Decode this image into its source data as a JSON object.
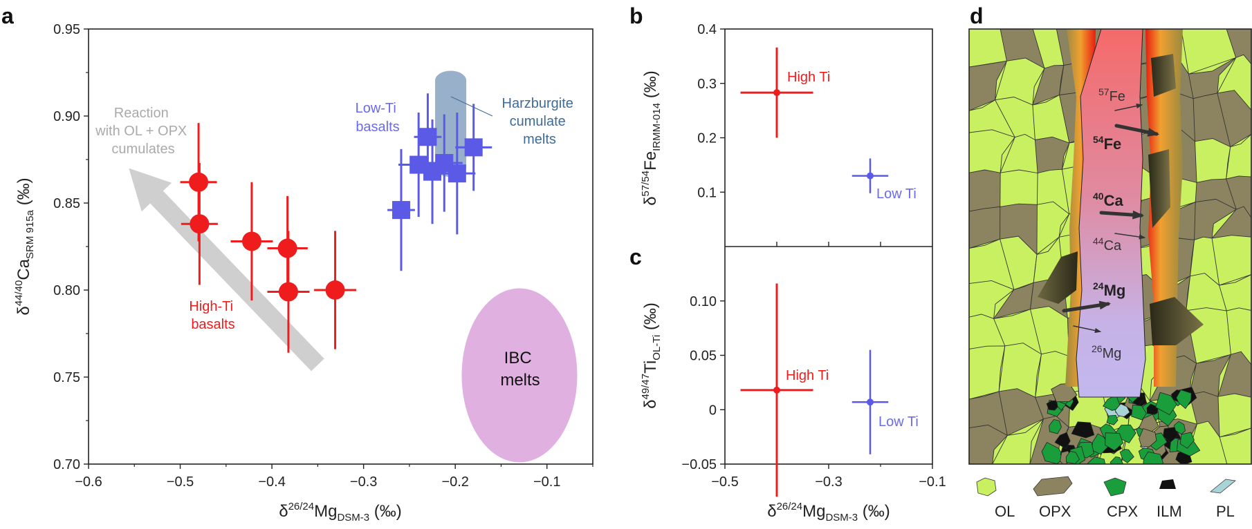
{
  "colors": {
    "high_ti": "#ee1c1c",
    "low_ti": "#5a5ae6",
    "low_ti_label": "#6a6af0",
    "harz_band": "#8ea7c4",
    "harz_label": "#3f6b99",
    "ibc": "#e0b0e0",
    "arrow": "#cfcfcf",
    "ol": "#c8f060",
    "opx": "#8c8460",
    "cpx": "#1a9e3c",
    "ilm": "#111111",
    "pl": "#a8d4d8"
  },
  "panel_labels": {
    "a": "a",
    "b": "b",
    "c": "c",
    "d": "d"
  },
  "chart_data": [
    {
      "id": "a",
      "type": "scatter",
      "xlabel": {
        "delta": "δ",
        "sup": "26/24",
        "base": "Mg",
        "sub": "DSM-3",
        "unit": " (‰)"
      },
      "ylabel": {
        "delta": "δ",
        "sup": "44/40",
        "base": "Ca",
        "sub": "SRM 915a",
        "unit": " (‰)"
      },
      "xlim": [
        -0.6,
        -0.05
      ],
      "ylim": [
        0.7,
        0.95
      ],
      "xticks": [
        -0.6,
        -0.5,
        -0.4,
        -0.3,
        -0.2,
        -0.1
      ],
      "xtick_labels": [
        "−0.6",
        "−0.5",
        "−0.4",
        "−0.3",
        "−0.2",
        "−0.1"
      ],
      "yticks": [
        0.7,
        0.75,
        0.8,
        0.85,
        0.9,
        0.95
      ],
      "ytick_labels": [
        "0.70",
        "0.75",
        "0.80",
        "0.85",
        "0.90",
        "0.95"
      ],
      "series": [
        {
          "name": "High-Ti basalts",
          "label_lines": [
            "High-Ti",
            "basalts"
          ],
          "marker": "circle",
          "points": [
            {
              "x": -0.48,
              "y": 0.862,
              "xerr": 0.02,
              "yerr": 0.034
            },
            {
              "x": -0.479,
              "y": 0.838,
              "xerr": 0.02,
              "yerr": 0.035
            },
            {
              "x": -0.422,
              "y": 0.828,
              "xerr": 0.023,
              "yerr": 0.034
            },
            {
              "x": -0.383,
              "y": 0.824,
              "xerr": 0.022,
              "yerr": 0.03
            },
            {
              "x": -0.382,
              "y": 0.799,
              "xerr": 0.023,
              "yerr": 0.035
            },
            {
              "x": -0.331,
              "y": 0.8,
              "xerr": 0.023,
              "yerr": 0.034
            }
          ]
        },
        {
          "name": "Low-Ti basalts",
          "label_lines": [
            "Low-Ti",
            "basalts"
          ],
          "marker": "square",
          "points": [
            {
              "x": -0.259,
              "y": 0.846,
              "xerr": 0.015,
              "yerr": 0.035
            },
            {
              "x": -0.23,
              "y": 0.888,
              "xerr": 0.015,
              "yerr": 0.025
            },
            {
              "x": -0.24,
              "y": 0.872,
              "xerr": 0.022,
              "yerr": 0.03
            },
            {
              "x": -0.225,
              "y": 0.868,
              "xerr": 0.015,
              "yerr": 0.03
            },
            {
              "x": -0.212,
              "y": 0.873,
              "xerr": 0.02,
              "yerr": 0.028
            },
            {
              "x": -0.198,
              "y": 0.867,
              "xerr": 0.02,
              "yerr": 0.035
            },
            {
              "x": -0.18,
              "y": 0.882,
              "xerr": 0.02,
              "yerr": 0.025
            }
          ]
        }
      ],
      "harzburgite": {
        "label_lines": [
          "Harzburgite",
          "cumulate",
          "melts"
        ],
        "x_range": [
          -0.222,
          -0.188
        ],
        "y_range": [
          0.865,
          0.926
        ]
      },
      "ibc": {
        "label_lines": [
          "IBC",
          "melts"
        ],
        "center": {
          "x": -0.13,
          "y": 0.751
        },
        "rx": 0.063,
        "ry": 0.05
      },
      "reaction_arrow": {
        "label_lines": [
          "Reaction",
          "with OL + OPX",
          "cumulates"
        ],
        "from": {
          "x": -0.35,
          "y": 0.757
        },
        "to": {
          "x": -0.556,
          "y": 0.87
        }
      }
    },
    {
      "id": "b",
      "type": "scatter",
      "ylabel": {
        "delta": "δ",
        "sup": "57/54",
        "base": "Fe",
        "sub": "IRMM-014",
        "unit": " (‰)"
      },
      "xlim": [
        -0.5,
        -0.1
      ],
      "ylim": [
        0.0,
        0.4
      ],
      "yticks": [
        0.1,
        0.2,
        0.3,
        0.4
      ],
      "ytick_labels": [
        "0.1",
        "0.2",
        "0.3",
        "0.4"
      ],
      "series": [
        {
          "name": "High Ti",
          "points": [
            {
              "x": -0.4,
              "y": 0.283,
              "xerr": 0.07,
              "yerr": 0.083
            }
          ]
        },
        {
          "name": "Low Ti",
          "points": [
            {
              "x": -0.22,
              "y": 0.13,
              "xerr": 0.035,
              "yerr": 0.032
            }
          ]
        }
      ]
    },
    {
      "id": "c",
      "type": "scatter",
      "xlabel": {
        "delta": "δ",
        "sup": "26/24",
        "base": "Mg",
        "sub": "DSM-3",
        "unit": " (‰)"
      },
      "ylabel": {
        "delta": "δ",
        "sup": "49/47",
        "base": "Ti",
        "sub": "OL-Ti",
        "unit": " (‰)"
      },
      "xlim": [
        -0.5,
        -0.1
      ],
      "ylim": [
        -0.05,
        0.15
      ],
      "xticks": [
        -0.5,
        -0.3,
        -0.1
      ],
      "xtick_labels": [
        "−0.5",
        "−0.3",
        "−0.1"
      ],
      "yticks": [
        -0.05,
        0,
        0.05,
        0.1
      ],
      "ytick_labels": [
        "−0.05",
        "0",
        "0.05",
        "0.10"
      ],
      "series": [
        {
          "name": "High Ti",
          "points": [
            {
              "x": -0.4,
              "y": 0.018,
              "xerr": 0.07,
              "yerr": 0.098
            }
          ]
        },
        {
          "name": "Low Ti",
          "points": [
            {
              "x": -0.22,
              "y": 0.007,
              "xerr": 0.035,
              "yerr": 0.048
            }
          ]
        }
      ]
    }
  ],
  "panel_d": {
    "channel_labels": [
      {
        "id": "fe57",
        "sup": "57",
        "base": "Fe",
        "bold": false
      },
      {
        "id": "fe54",
        "sup": "54",
        "base": "Fe",
        "bold": true
      },
      {
        "id": "ca40",
        "sup": "40",
        "base": "Ca",
        "bold": true
      },
      {
        "id": "ca44",
        "sup": "44",
        "base": "Ca",
        "bold": false
      },
      {
        "id": "mg24",
        "sup": "24",
        "base": "Mg",
        "bold": true
      },
      {
        "id": "mg26",
        "sup": "26",
        "base": "Mg",
        "bold": false
      }
    ],
    "legend": [
      {
        "key": "ol",
        "label": "OL"
      },
      {
        "key": "opx",
        "label": "OPX"
      },
      {
        "key": "cpx",
        "label": "CPX"
      },
      {
        "key": "ilm",
        "label": "ILM"
      },
      {
        "key": "pl",
        "label": "PL"
      }
    ]
  }
}
